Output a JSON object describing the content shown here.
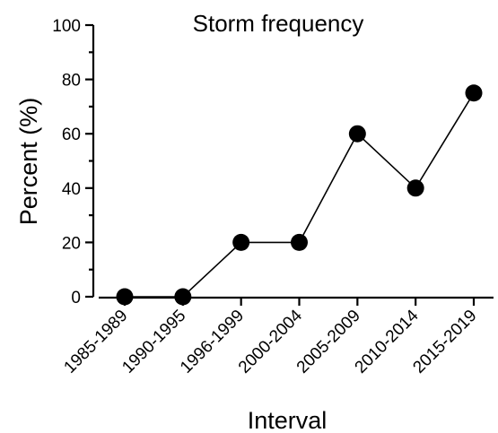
{
  "chart_data": {
    "type": "line",
    "title": "Storm frequency",
    "xlabel": "Interval",
    "ylabel": "Percent (%)",
    "categories": [
      "1985-1989",
      "1990-1995",
      "1996-1999",
      "2000-2004",
      "2005-2009",
      "2010-2014",
      "2015-2019"
    ],
    "series": [
      {
        "values": [
          0,
          0,
          20,
          20,
          60,
          40,
          75
        ]
      }
    ],
    "ylim": [
      0,
      100
    ],
    "yticks": [
      0,
      20,
      40,
      60,
      80,
      100
    ],
    "grid": false,
    "legend": "none",
    "colors": {
      "line": "#000000",
      "marker": "#000000"
    }
  }
}
